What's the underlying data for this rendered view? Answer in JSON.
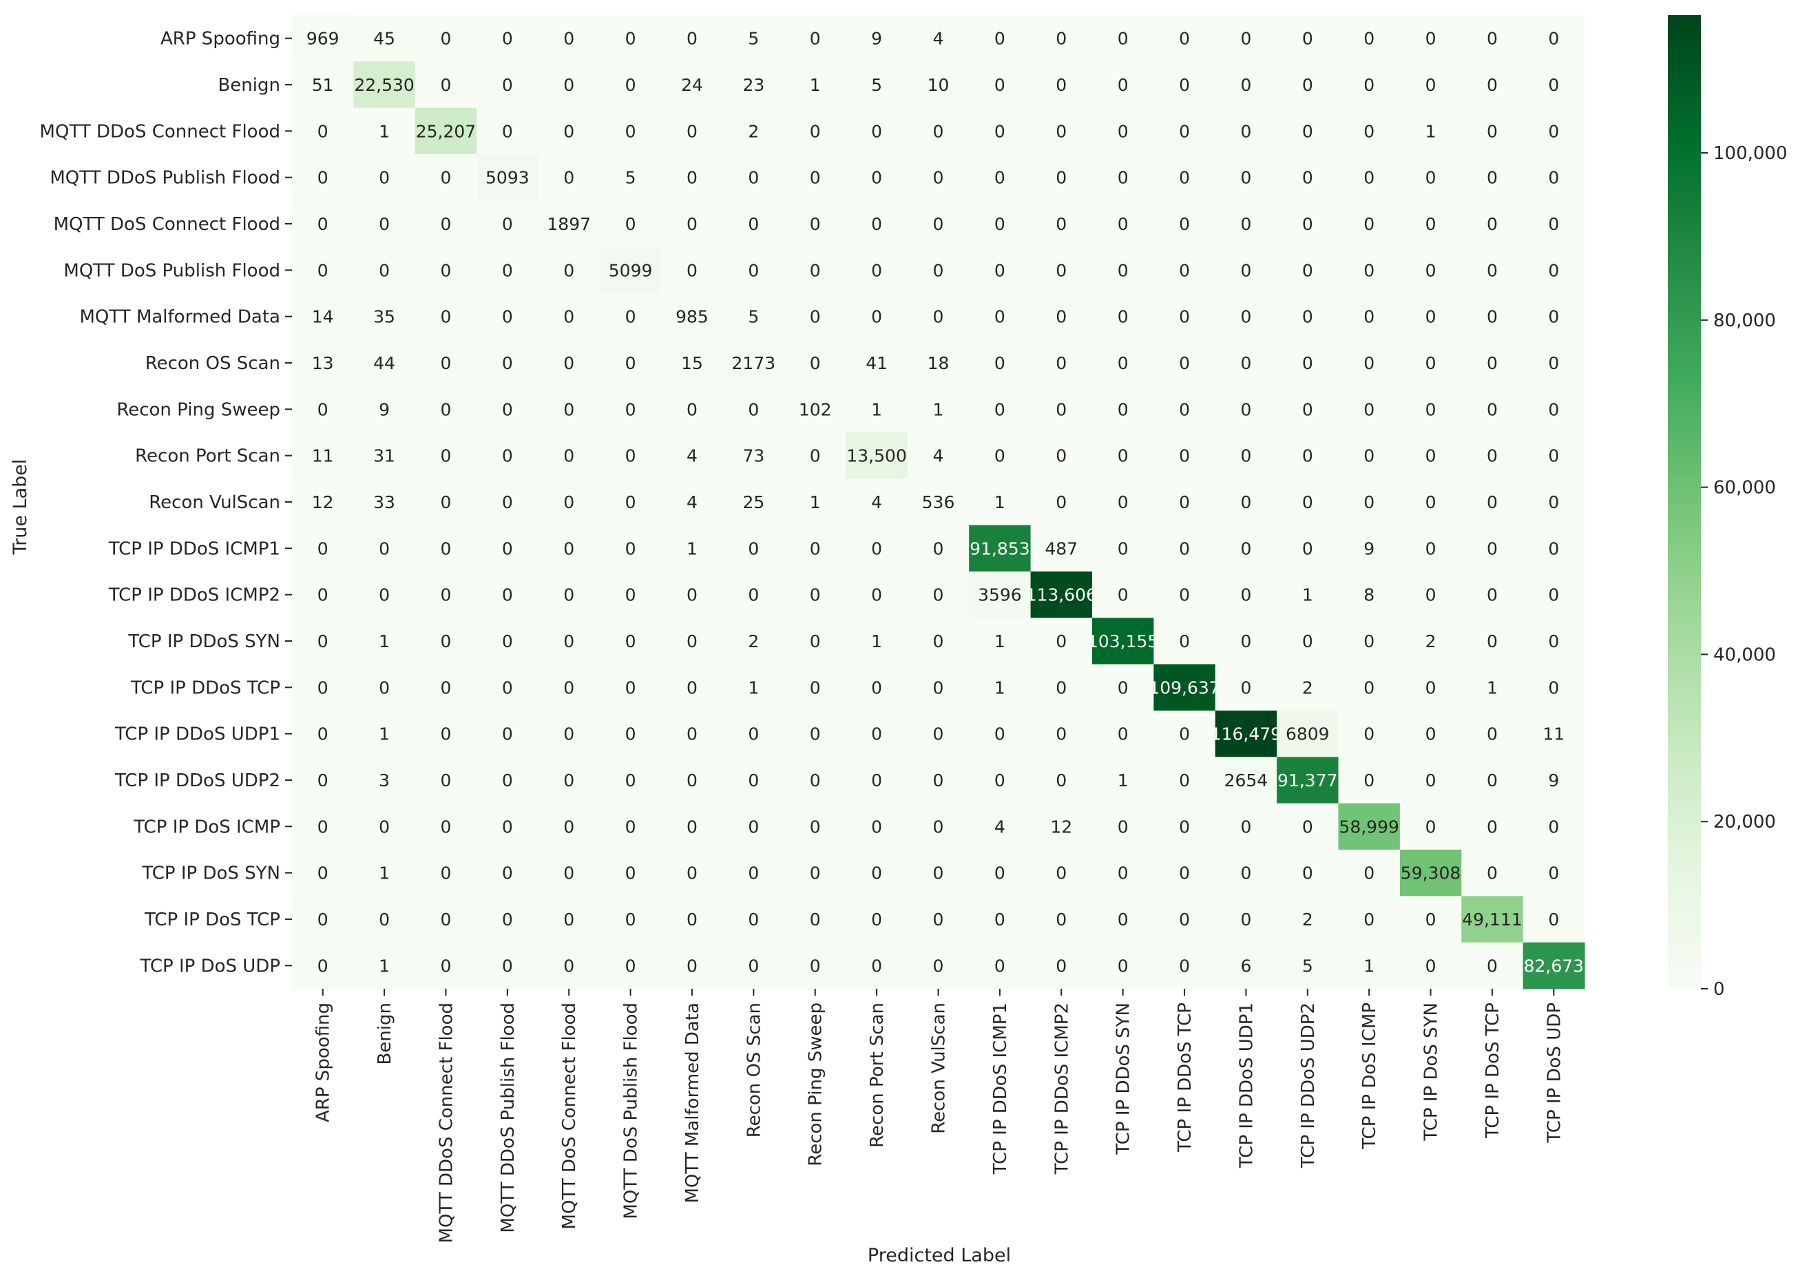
{
  "chart_data": {
    "type": "heatmap",
    "title": "",
    "xlabel": "Predicted Label",
    "ylabel": "True Label",
    "color_scale": {
      "low": "#f7fcf5",
      "high": "#00441b",
      "min": 0,
      "max": 116479
    },
    "colorbar_ticks": [
      {
        "value": 0,
        "label": "0"
      },
      {
        "value": 20000,
        "label": "20,000"
      },
      {
        "value": 40000,
        "label": "40,000"
      },
      {
        "value": 60000,
        "label": "60,000"
      },
      {
        "value": 80000,
        "label": "80,000"
      },
      {
        "value": 100000,
        "label": "100,000"
      }
    ],
    "labels": [
      "ARP Spoofing",
      "Benign",
      "MQTT DDoS Connect Flood",
      "MQTT DDoS Publish Flood",
      "MQTT DoS Connect Flood",
      "MQTT DoS Publish Flood",
      "MQTT Malformed Data",
      "Recon OS Scan",
      "Recon Ping Sweep",
      "Recon Port Scan",
      "Recon VulScan",
      "TCP IP DDoS ICMP1",
      "TCP IP DDoS ICMP2",
      "TCP IP DDoS SYN",
      "TCP IP DDoS TCP",
      "TCP IP DDoS UDP1",
      "TCP IP DDoS UDP2",
      "TCP IP DoS ICMP",
      "TCP IP DoS SYN",
      "TCP IP DoS TCP",
      "TCP IP DoS UDP"
    ],
    "matrix": [
      [
        969,
        45,
        0,
        0,
        0,
        0,
        0,
        5,
        0,
        9,
        4,
        0,
        0,
        0,
        0,
        0,
        0,
        0,
        0,
        0,
        0
      ],
      [
        51,
        22530,
        0,
        0,
        0,
        0,
        24,
        23,
        1,
        5,
        10,
        0,
        0,
        0,
        0,
        0,
        0,
        0,
        0,
        0,
        0
      ],
      [
        0,
        1,
        25207,
        0,
        0,
        0,
        0,
        2,
        0,
        0,
        0,
        0,
        0,
        0,
        0,
        0,
        0,
        0,
        1,
        0,
        0
      ],
      [
        0,
        0,
        0,
        5093,
        0,
        5,
        0,
        0,
        0,
        0,
        0,
        0,
        0,
        0,
        0,
        0,
        0,
        0,
        0,
        0,
        0
      ],
      [
        0,
        0,
        0,
        0,
        1897,
        0,
        0,
        0,
        0,
        0,
        0,
        0,
        0,
        0,
        0,
        0,
        0,
        0,
        0,
        0,
        0
      ],
      [
        0,
        0,
        0,
        0,
        0,
        5099,
        0,
        0,
        0,
        0,
        0,
        0,
        0,
        0,
        0,
        0,
        0,
        0,
        0,
        0,
        0
      ],
      [
        14,
        35,
        0,
        0,
        0,
        0,
        985,
        5,
        0,
        0,
        0,
        0,
        0,
        0,
        0,
        0,
        0,
        0,
        0,
        0,
        0
      ],
      [
        13,
        44,
        0,
        0,
        0,
        0,
        15,
        2173,
        0,
        41,
        18,
        0,
        0,
        0,
        0,
        0,
        0,
        0,
        0,
        0,
        0
      ],
      [
        0,
        9,
        0,
        0,
        0,
        0,
        0,
        0,
        102,
        1,
        1,
        0,
        0,
        0,
        0,
        0,
        0,
        0,
        0,
        0,
        0
      ],
      [
        11,
        31,
        0,
        0,
        0,
        0,
        4,
        73,
        0,
        13500,
        4,
        0,
        0,
        0,
        0,
        0,
        0,
        0,
        0,
        0,
        0
      ],
      [
        12,
        33,
        0,
        0,
        0,
        0,
        4,
        25,
        1,
        4,
        536,
        1,
        0,
        0,
        0,
        0,
        0,
        0,
        0,
        0,
        0
      ],
      [
        0,
        0,
        0,
        0,
        0,
        0,
        1,
        0,
        0,
        0,
        0,
        91853,
        487,
        0,
        0,
        0,
        0,
        9,
        0,
        0,
        0
      ],
      [
        0,
        0,
        0,
        0,
        0,
        0,
        0,
        0,
        0,
        0,
        0,
        3596,
        113606,
        0,
        0,
        0,
        1,
        8,
        0,
        0,
        0
      ],
      [
        0,
        1,
        0,
        0,
        0,
        0,
        0,
        2,
        0,
        1,
        0,
        1,
        0,
        103155,
        0,
        0,
        0,
        0,
        2,
        0,
        0
      ],
      [
        0,
        0,
        0,
        0,
        0,
        0,
        0,
        1,
        0,
        0,
        0,
        1,
        0,
        0,
        109637,
        0,
        2,
        0,
        0,
        1,
        0
      ],
      [
        0,
        1,
        0,
        0,
        0,
        0,
        0,
        0,
        0,
        0,
        0,
        0,
        0,
        0,
        0,
        116479,
        6809,
        0,
        0,
        0,
        11
      ],
      [
        0,
        3,
        0,
        0,
        0,
        0,
        0,
        0,
        0,
        0,
        0,
        0,
        0,
        1,
        0,
        2654,
        91377,
        0,
        0,
        0,
        9
      ],
      [
        0,
        0,
        0,
        0,
        0,
        0,
        0,
        0,
        0,
        0,
        0,
        4,
        12,
        0,
        0,
        0,
        0,
        58999,
        0,
        0,
        0
      ],
      [
        0,
        1,
        0,
        0,
        0,
        0,
        0,
        0,
        0,
        0,
        0,
        0,
        0,
        0,
        0,
        0,
        0,
        0,
        59308,
        0,
        0
      ],
      [
        0,
        0,
        0,
        0,
        0,
        0,
        0,
        0,
        0,
        0,
        0,
        0,
        0,
        0,
        0,
        0,
        2,
        0,
        0,
        49111,
        0
      ],
      [
        0,
        1,
        0,
        0,
        0,
        0,
        0,
        0,
        0,
        0,
        0,
        0,
        0,
        0,
        0,
        6,
        5,
        1,
        0,
        0,
        82673
      ]
    ]
  }
}
